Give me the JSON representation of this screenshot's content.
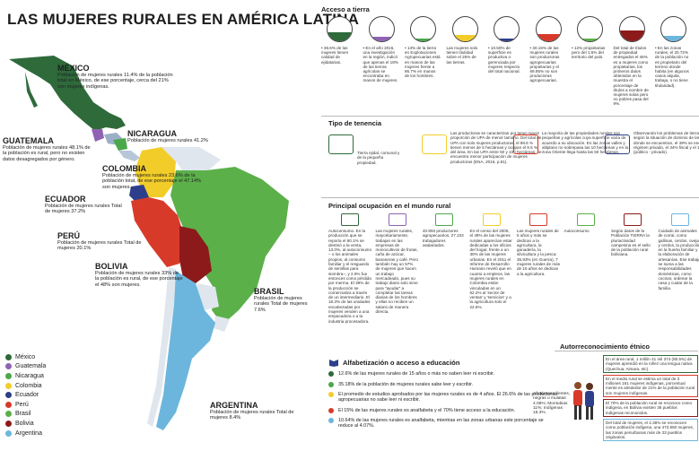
{
  "title": "LAS MUJERES RURALES EN AMÉRICA LATINA",
  "countries": {
    "mexico": {
      "name": "MÉXICO",
      "text": "Población de mujeres rurales 11.4% de la población total en México, de ese porcentaje, cerca del 21% son mujeres indígenas."
    },
    "nicaragua": {
      "name": "NICARAGUA",
      "text": "Población de mujeres rurales 41.2%"
    },
    "guatemala": {
      "name": "GUATEMALA",
      "text": "Población de mujeres rurales 48.1% de la población es rural, pero no existen datos desagregados por género."
    },
    "colombia": {
      "name": "COLOMBIA",
      "text": "Población de mujeres rurales 23.6% de la población total, de ese porcentaje el 47.14% son mujeres."
    },
    "ecuador": {
      "name": "ECUADOR",
      "text": "Población de mujeres rurales Total de mujeres 37.2%"
    },
    "peru": {
      "name": "PERÚ",
      "text": "Población de mujeres rurales Total de mujeres 20.1%"
    },
    "bolivia": {
      "name": "BOLIVIA",
      "text": "Población de mujeres rurales 33% de la población es rural, de ese porcentaje el 48% son mujeres."
    },
    "brasil": {
      "name": "BRASIL",
      "text": "Población de mujeres rurales Total de mujeres 7.6%"
    },
    "argentina": {
      "name": "ARGENTINA",
      "text": "Población de mujeres rurales Total de mujeres 8.4%"
    }
  },
  "legend": [
    {
      "label": "México",
      "color": "#2e6a3a"
    },
    {
      "label": "Guatemala",
      "color": "#8f63b3"
    },
    {
      "label": "Nicaragua",
      "color": "#4aa84a"
    },
    {
      "label": "Colombia",
      "color": "#f2cd2a"
    },
    {
      "label": "Ecuador",
      "color": "#2d3f8a"
    },
    {
      "label": "Perú",
      "color": "#d83a2a"
    },
    {
      "label": "Brasil",
      "color": "#5bb04a"
    },
    {
      "label": "Bolivia",
      "color": "#8c1a1a"
    },
    {
      "label": "Argentina",
      "color": "#6cb6dd"
    }
  ],
  "acceso": {
    "heading": "Acceso a tierra",
    "items": [
      {
        "text": "• 36.6% de las mujeres tienen calidad de ejidatarias.",
        "color": "#2e6a3a",
        "level": 0.37
      },
      {
        "text": "• En el año 2015, una investigación en la región, indicó que apenas el 18% de las tierras agrícolas se encontraba en manos de mujeres.",
        "color": "#8f63b3",
        "level": 0.18
      },
      {
        "text": "• 13% de la tierra en Explotaciones Agropecuarias está en manos de las mujeres frente a 86.7% en manos de los hombres.",
        "color": "#4aa84a",
        "level": 0.13
      },
      {
        "text": "Las mujeres solo tienen titulidad sobre el 26% de las tierras.",
        "color": "#f2cd2a",
        "level": 0.26
      },
      {
        "text": "• 10.50% de superficie es productiva o gerenciada por mujeres respecto del total nacional.",
        "color": "#2d3f8a",
        "level": 0.1
      },
      {
        "text": "• 30.15% de las mujeres rurales son productoras agropecuarias propietarias y el 69.85% no son productoras agropecuarias.",
        "color": "#d83a2a",
        "level": 0.3
      },
      {
        "text": "• 12% propietarias pero del 1.5% del territorio del país.",
        "color": "#5bb04a",
        "level": 0.12
      },
      {
        "text": "Del total de títulos de propiedad entregados el 46% es a mujeres como propietarias, los primeros datos obtenidos en la muestra el porcentaje de títulos a nombre de mujeres solas pero no pobres pasa del 9%.",
        "color": "#8c1a1a",
        "level": 0.46
      },
      {
        "text": "• En las zonas rurales, el 20.72% de la población no es propietario del terreno donde habita (en algunos casos alquila, trabaja, o no tiene titularidad).",
        "color": "#6cb6dd",
        "level": 0.21
      }
    ]
  },
  "tenencia": {
    "heading": "Tipo de tenencia",
    "items": [
      "Tierra ejidal, comunal y de la pequeña propiedad.",
      "Las productoras se caracterizan por tener mayor proporción de UPA de menor tamaño. Del total de UPA con solo mujeres productoras, el 98.6 % tienen menos de 5 hectáreas y ocupan el 9.5 % del área. En las UPA entre 50 y 100 hectáreas, se encuentra menor participación de mujeres productoras (ENA, 2016, p.81).",
      "La mayoría de las propiedades rurales son pequeñas y agrícolas cuya superficie varía de acuerdo a su ubicación. En las zonas valles y altiplano no sobrepasa las 10 hectáreas y en la zona Oriente llega hasta las 50 hectáreas.",
      "Observando los problemas de tierra relevados según la situación de dominio de las tierras donde se encuentran, el 49% se encuentra en régimen privado, el 34% fiscal y el 17% mixto (público - privado)."
    ]
  },
  "ocupacion": {
    "heading": "Principal ocupación en el mundo rural",
    "items": [
      "Autoconsumo. En la producción que se reporta el 80.1% se destinó a la venta, 13.0%, al autoconsumo – o los animales propios, al consumo familiar y el resguardo de semillas para siembra–, y 2.9% fue entonces como pérdida por merma. El 39% de la producción se comercializa a través de un intermediario. El 18.3% de las unidades encabezadas por mujeres venden a una empacadora o a la industria procesadora.",
      "Las mujeres rurales, mayoritariamente, trabajan en las empresas de monocultivos de frutas, caña de azúcar, bananeras y café. Pero también hay un 57% de mujeres que hacen un trabajo mercadeado, pues su trabajo diario solo sirve para \"ayudar\" a completar las tareas diarias de los hombres y ellas no reciben un salario de manera directa.",
      "40.893 productores agropecuarios, 27.103 trabajadores asalariados.",
      "En el censo del 2005, el 49% de las mujeres rurales aparecían estar dedicadas a los oficios del hogar, frente a un 30% de las mujeres urbanas. En el 2011 el Informe de Desarrollo Humano reveló que en cuanto a empleos, las mujeres rurales en Colombia están vinculadas en un 62.2% al 'sector de ventas' y 'servicios' y a la agricultura solo el 22.6%.",
      "Las mujeres rurales de 5 años y más se dedican a la agricultura, la ganadería, la silvicultura y la pesca: 35.93% (en Guerra), 7 mujeres rurales de más de 15 años se dedican a la agricultura.",
      "Autoconsumo",
      "Según datos de la Población TIERRA la pluriactividad campesina es el sello de la población rural boliviana.",
      "Cuidado de animales de corral, como gallinas, cerdos, ovejas y cerdos, la producción en la huerta familiar y la elaboración de artesanías. Ese trabajo se suma a las responsabilidades domésticas, como cocinar, ordenar la casa y cuidar de la familia."
    ]
  },
  "educacion": {
    "heading": "Alfabetización o acceso a educación",
    "items": [
      {
        "text": "12.6% de las mujeres rurales de 15 años o más no saben leer ni escribir.",
        "color": "#2e6a3a"
      },
      {
        "text": "35.18% de la población de mujeres rurales sabe leer y escribir.",
        "color": "#4aa84a"
      },
      {
        "text": "El promedio de estudios aprobados por las mujeres rurales es de 4 años. El 26.6% de las productoras agropecuarias no sabe leer ni escribir.",
        "color": "#f2cd2a"
      },
      {
        "text": "El 15% de las mujeres rurales es analfabeta y el 70% tiene acceso a la educación.",
        "color": "#d83a2a"
      },
      {
        "text": "10.64% de las mujeres rurales es analfabeta, mientras en las zonas urbanas este porcentaje se reduce al 4.07%.",
        "color": "#6cb6dd"
      }
    ]
  },
  "autoreconocimiento": {
    "heading": "Autorreconocimiento étnico",
    "left_text": "Afrodescendientes, negras o mulatas 4.08%; Montubias 11%; Indígenas 15.3%.",
    "items": [
      "En el área rural, 1 millón 41 mil 374 (80.5%) de mujeres aprendió en la niñez una lengua nativa (Quechua, Aimara, etc).",
      "En el medio rural se estima un total de 3 millones 161 mujeres indígenas, porcentual mente es alrededor de 21% de la población rural son mujeres indígenas.",
      "El 70% de la población rural se reconoce como indígena, en Bolivia existen 36 pueblos indígenas reconocidos.",
      "Del total de mujeres, el 2.38% se reconocen como población indígena, una 473.950 mujeres, las zonas periurbanas más de 33 pueblos originarios."
    ]
  }
}
